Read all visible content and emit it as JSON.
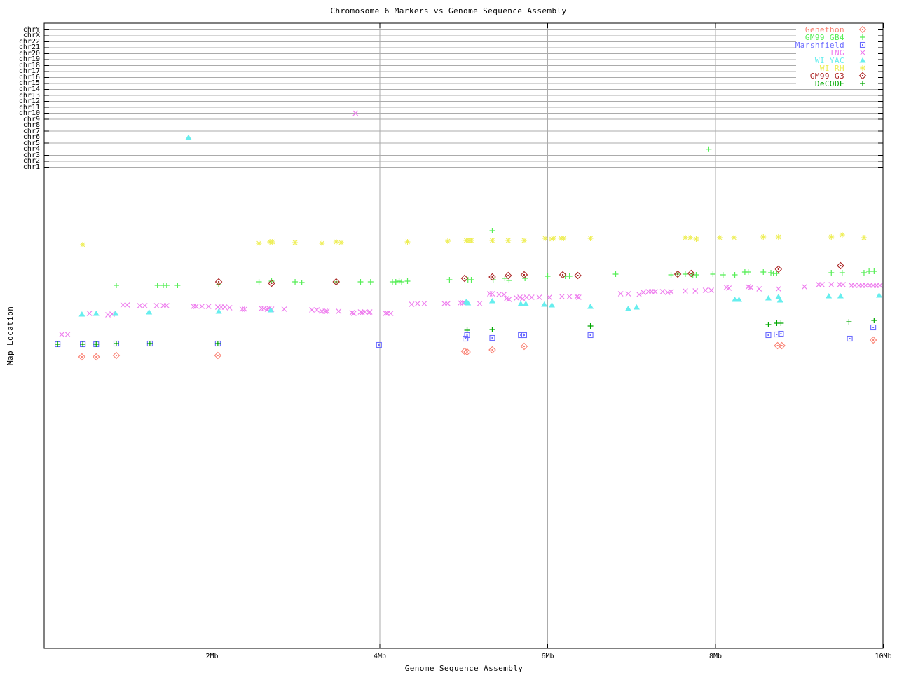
{
  "title": "Chromosome 6 Markers vs Genome Sequence Assembly",
  "x_axis": {
    "label": "Genome Sequence Assembly",
    "range_mb": [
      0,
      10
    ],
    "ticks": [
      {
        "label": "2Mb",
        "mb": 2
      },
      {
        "label": "4Mb",
        "mb": 4
      },
      {
        "label": "6Mb",
        "mb": 6
      },
      {
        "label": "8Mb",
        "mb": 8
      },
      {
        "label": "10Mb",
        "mb": 10
      }
    ]
  },
  "y_axis": {
    "label": "Map Location",
    "chromosomes": [
      "chrY",
      "chrX",
      "chr22",
      "chr21",
      "chr20",
      "chr19",
      "chr18",
      "chr17",
      "chr16",
      "chr15",
      "chr14",
      "chr13",
      "chr12",
      "chr11",
      "chr10",
      "chr9",
      "chr8",
      "chr7",
      "chr6",
      "chr5",
      "chr4",
      "chr3",
      "chr2",
      "chr1"
    ]
  },
  "legend": {
    "position": "top-right"
  },
  "chart_data": {
    "type": "scatter",
    "title": "Chromosome 6 Markers vs Genome Sequence Assembly",
    "xlabel": "Genome Sequence Assembly",
    "ylabel": "Map Location",
    "x_units": "Mb",
    "x_range": [
      0,
      10
    ],
    "x_gridlines_mb": [
      2,
      4,
      6,
      8
    ],
    "y_note": "The 'Map Location' axis shows no numeric scale. Point y-values below are pixel rows in the 960px-tall source image; chr_points are markers plotted on the labeled chromosome category lines at the top of the plot.",
    "grid": "horizontal chromosome category lines at top + vertical Mb gridlines",
    "legend_position": "top-right inset",
    "series": [
      {
        "name": "Genethon",
        "color": "#fa8072",
        "marker": "diamond",
        "points": [
          [
            0.45,
            509
          ],
          [
            0.62,
            509
          ],
          [
            0.86,
            507
          ],
          [
            2.07,
            507
          ],
          [
            5.01,
            501
          ],
          [
            5.04,
            502
          ],
          [
            5.34,
            499
          ],
          [
            5.72,
            494
          ],
          [
            8.74,
            493
          ],
          [
            8.79,
            493
          ],
          [
            9.88,
            485
          ]
        ]
      },
      {
        "name": "GM99 GB4",
        "color": "#55ee55",
        "marker": "plus",
        "points": [
          [
            0.86,
            407
          ],
          [
            1.35,
            407
          ],
          [
            1.42,
            407
          ],
          [
            1.46,
            407
          ],
          [
            1.59,
            407
          ],
          [
            2.08,
            406
          ],
          [
            2.56,
            402
          ],
          [
            2.71,
            401
          ],
          [
            2.99,
            402
          ],
          [
            3.07,
            403
          ],
          [
            3.48,
            402
          ],
          [
            3.77,
            402
          ],
          [
            3.89,
            402
          ],
          [
            4.15,
            402
          ],
          [
            4.19,
            402
          ],
          [
            4.23,
            401
          ],
          [
            4.26,
            402
          ],
          [
            4.33,
            401
          ],
          [
            4.83,
            399
          ],
          [
            5.05,
            399
          ],
          [
            5.09,
            399
          ],
          [
            5.34,
            329
          ],
          [
            5.35,
            399
          ],
          [
            5.49,
            397
          ],
          [
            5.54,
            400
          ],
          [
            5.73,
            397
          ],
          [
            6.0,
            394
          ],
          [
            6.21,
            394
          ],
          [
            6.26,
            394
          ],
          [
            6.81,
            391
          ],
          [
            7.47,
            392
          ],
          [
            7.55,
            391
          ],
          [
            7.64,
            391
          ],
          [
            7.73,
            392
          ],
          [
            7.77,
            392
          ],
          [
            7.97,
            391
          ],
          [
            8.09,
            392
          ],
          [
            8.23,
            392
          ],
          [
            8.35,
            388
          ],
          [
            8.39,
            388
          ],
          [
            8.57,
            388
          ],
          [
            8.66,
            389
          ],
          [
            8.69,
            390
          ],
          [
            8.73,
            390
          ],
          [
            9.38,
            389
          ],
          [
            9.51,
            389
          ],
          [
            9.77,
            389
          ],
          [
            9.83,
            387
          ],
          [
            9.89,
            387
          ]
        ],
        "chr_points": [
          {
            "chr": "chr4",
            "mb": 7.92
          }
        ]
      },
      {
        "name": "Marshfield",
        "color": "#6b6bff",
        "marker": "square",
        "points": [
          [
            0.16,
            491
          ],
          [
            0.46,
            491
          ],
          [
            0.62,
            491
          ],
          [
            0.86,
            490
          ],
          [
            1.26,
            490
          ],
          [
            2.07,
            490
          ],
          [
            3.99,
            492
          ],
          [
            5.02,
            483
          ],
          [
            5.04,
            478
          ],
          [
            5.34,
            482
          ],
          [
            5.68,
            478
          ],
          [
            5.72,
            478
          ],
          [
            6.51,
            478
          ],
          [
            8.63,
            478
          ],
          [
            8.73,
            477
          ],
          [
            8.78,
            476
          ],
          [
            9.6,
            483
          ],
          [
            9.88,
            467
          ]
        ]
      },
      {
        "name": "TNG",
        "color": "#ee7bee",
        "marker": "cross",
        "points": [
          [
            0.21,
            477
          ],
          [
            0.28,
            477
          ],
          [
            0.54,
            447
          ],
          [
            0.76,
            449
          ],
          [
            0.81,
            448
          ],
          [
            0.94,
            435
          ],
          [
            0.99,
            435
          ],
          [
            1.14,
            436
          ],
          [
            1.2,
            436
          ],
          [
            1.34,
            436
          ],
          [
            1.42,
            436
          ],
          [
            1.46,
            436
          ],
          [
            1.78,
            437
          ],
          [
            1.81,
            437
          ],
          [
            1.88,
            437
          ],
          [
            1.96,
            437
          ],
          [
            2.07,
            438
          ],
          [
            2.11,
            438
          ],
          [
            2.15,
            438
          ],
          [
            2.21,
            439
          ],
          [
            2.36,
            441
          ],
          [
            2.39,
            441
          ],
          [
            2.59,
            440
          ],
          [
            2.62,
            440
          ],
          [
            2.66,
            441
          ],
          [
            2.68,
            440
          ],
          [
            2.71,
            441
          ],
          [
            2.86,
            441
          ],
          [
            3.19,
            442
          ],
          [
            3.25,
            442
          ],
          [
            3.31,
            444
          ],
          [
            3.35,
            444
          ],
          [
            3.37,
            444
          ],
          [
            3.51,
            444
          ],
          [
            3.67,
            446
          ],
          [
            3.69,
            447
          ],
          [
            3.77,
            445
          ],
          [
            3.79,
            446
          ],
          [
            3.82,
            445
          ],
          [
            3.87,
            446
          ],
          [
            3.88,
            445
          ],
          [
            4.07,
            447
          ],
          [
            4.09,
            447
          ],
          [
            4.13,
            447
          ],
          [
            4.38,
            434
          ],
          [
            4.45,
            433
          ],
          [
            4.53,
            433
          ],
          [
            4.77,
            433
          ],
          [
            4.81,
            433
          ],
          [
            4.96,
            432
          ],
          [
            4.99,
            432
          ],
          [
            5.01,
            432
          ],
          [
            5.19,
            433
          ],
          [
            5.31,
            419
          ],
          [
            5.34,
            419
          ],
          [
            5.42,
            420
          ],
          [
            5.48,
            420
          ],
          [
            5.51,
            426
          ],
          [
            5.54,
            427
          ],
          [
            5.63,
            425
          ],
          [
            5.67,
            424
          ],
          [
            5.7,
            426
          ],
          [
            5.75,
            424
          ],
          [
            5.81,
            424
          ],
          [
            5.9,
            424
          ],
          [
            6.02,
            424
          ],
          [
            6.17,
            423
          ],
          [
            6.26,
            423
          ],
          [
            6.35,
            423
          ],
          [
            6.37,
            424
          ],
          [
            6.87,
            419
          ],
          [
            6.96,
            419
          ],
          [
            7.09,
            420
          ],
          [
            7.14,
            417
          ],
          [
            7.2,
            416
          ],
          [
            7.24,
            416
          ],
          [
            7.28,
            416
          ],
          [
            7.37,
            416
          ],
          [
            7.43,
            417
          ],
          [
            7.47,
            416
          ],
          [
            7.64,
            415
          ],
          [
            7.76,
            415
          ],
          [
            7.88,
            414
          ],
          [
            7.95,
            414
          ],
          [
            8.13,
            410
          ],
          [
            8.16,
            411
          ],
          [
            8.39,
            409
          ],
          [
            8.42,
            410
          ],
          [
            8.52,
            412
          ],
          [
            8.75,
            412
          ],
          [
            9.06,
            409
          ],
          [
            9.23,
            406
          ],
          [
            9.27,
            406
          ],
          [
            9.38,
            406
          ],
          [
            9.48,
            406
          ],
          [
            9.52,
            406
          ],
          [
            9.62,
            407
          ],
          [
            9.66,
            407
          ],
          [
            9.71,
            407
          ],
          [
            9.75,
            407
          ],
          [
            9.79,
            407
          ],
          [
            9.84,
            407
          ],
          [
            9.88,
            407
          ],
          [
            9.92,
            407
          ],
          [
            9.96,
            407
          ]
        ],
        "chr_points": [
          {
            "chr": "chr10",
            "mb": 3.71
          }
        ]
      },
      {
        "name": "WI YAC",
        "color": "#66eeee",
        "marker": "triangle",
        "points": [
          [
            0.45,
            448
          ],
          [
            0.62,
            447
          ],
          [
            0.85,
            447
          ],
          [
            1.25,
            445
          ],
          [
            2.08,
            444
          ],
          [
            2.7,
            442
          ],
          [
            5.03,
            430
          ],
          [
            5.05,
            432
          ],
          [
            5.34,
            429
          ],
          [
            5.68,
            433
          ],
          [
            5.74,
            433
          ],
          [
            5.96,
            434
          ],
          [
            6.05,
            435
          ],
          [
            6.51,
            437
          ],
          [
            6.96,
            440
          ],
          [
            7.06,
            438
          ],
          [
            8.23,
            427
          ],
          [
            8.28,
            427
          ],
          [
            8.63,
            425
          ],
          [
            8.75,
            423
          ],
          [
            8.77,
            428
          ],
          [
            9.35,
            422
          ],
          [
            9.49,
            422
          ],
          [
            9.95,
            421
          ]
        ],
        "chr_points": [
          {
            "chr": "chr6",
            "mb": 1.72
          }
        ]
      },
      {
        "name": "WI RH",
        "color": "#eeee55",
        "marker": "asterisk",
        "points": [
          [
            0.46,
            349
          ],
          [
            2.56,
            347
          ],
          [
            2.69,
            345
          ],
          [
            2.72,
            345
          ],
          [
            2.99,
            346
          ],
          [
            3.31,
            347
          ],
          [
            3.48,
            345
          ],
          [
            3.54,
            346
          ],
          [
            4.33,
            345
          ],
          [
            4.81,
            344
          ],
          [
            5.03,
            343
          ],
          [
            5.06,
            343
          ],
          [
            5.09,
            343
          ],
          [
            5.34,
            343
          ],
          [
            5.53,
            343
          ],
          [
            5.72,
            343
          ],
          [
            5.97,
            340
          ],
          [
            6.05,
            341
          ],
          [
            6.07,
            340
          ],
          [
            6.16,
            340
          ],
          [
            6.19,
            340
          ],
          [
            6.51,
            340
          ],
          [
            7.64,
            339
          ],
          [
            7.7,
            339
          ],
          [
            7.77,
            341
          ],
          [
            8.05,
            339
          ],
          [
            8.22,
            339
          ],
          [
            8.57,
            338
          ],
          [
            8.75,
            338
          ],
          [
            9.38,
            338
          ],
          [
            9.51,
            335
          ],
          [
            9.77,
            339
          ]
        ]
      },
      {
        "name": "GM99 G3",
        "color": "#aa2222",
        "marker": "diamond",
        "points": [
          [
            2.08,
            402
          ],
          [
            2.71,
            404
          ],
          [
            3.48,
            402
          ],
          [
            5.01,
            397
          ],
          [
            5.34,
            395
          ],
          [
            5.53,
            393
          ],
          [
            5.72,
            392
          ],
          [
            6.18,
            392
          ],
          [
            6.36,
            393
          ],
          [
            7.55,
            391
          ],
          [
            7.71,
            390
          ],
          [
            8.75,
            384
          ],
          [
            9.49,
            379
          ]
        ]
      },
      {
        "name": "DeCODE",
        "color": "#00a800",
        "marker": "plus",
        "points": [
          [
            0.16,
            491
          ],
          [
            0.46,
            491
          ],
          [
            0.62,
            491
          ],
          [
            0.86,
            490
          ],
          [
            1.26,
            490
          ],
          [
            2.07,
            490
          ],
          [
            5.04,
            471
          ],
          [
            5.34,
            470
          ],
          [
            6.51,
            465
          ],
          [
            8.63,
            463
          ],
          [
            8.73,
            461
          ],
          [
            8.78,
            461
          ],
          [
            9.59,
            459
          ],
          [
            9.89,
            457
          ]
        ]
      }
    ]
  }
}
